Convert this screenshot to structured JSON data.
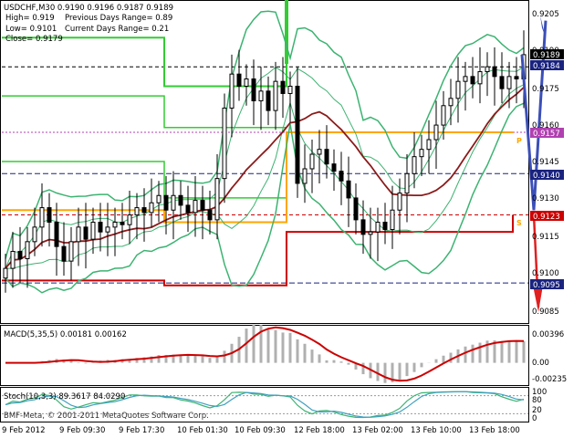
{
  "header": {
    "symbol_line": "USDCHF,M30  0.9190 0.9196 0.9187 0.9189",
    "high": "High= 0.919",
    "low": "Low= 0.9101",
    "close": "Close= 0.9179",
    "prev_range": "Previous Days Range= 0.89",
    "cur_range": "Current Days Range= 0.21"
  },
  "colors": {
    "candle": "#000000",
    "bollinger": "#3cb371",
    "ma_brown": "#8b1a1a",
    "ma_darkred": "#8b0000",
    "green_level": "#33cc33",
    "orange_level": "#ffa500",
    "red_level": "#cc0000",
    "arrow_blue": "#3b4fb8",
    "arrow_red": "#e02020",
    "pivot_magenta": "#b040b0",
    "macd_hist": "#b0b0b0",
    "macd_signal": "#cc0000",
    "stoch_main": "#3cb371",
    "stoch_signal": "#40a0c0"
  },
  "price_axis": {
    "labels": [
      "0.9205",
      "0.9190",
      "0.9175",
      "0.9160",
      "0.9145",
      "0.9130",
      "0.9115",
      "0.9100",
      "0.9085"
    ],
    "tags": [
      {
        "text": "0.9189",
        "bg": "#000000"
      },
      {
        "text": "0.9184",
        "bg": "#1a237e"
      },
      {
        "text": "0.9157",
        "bg": "#b040b0"
      },
      {
        "text": "0.9140",
        "bg": "#1a237e"
      },
      {
        "text": "0.9123",
        "bg": "#cc0000"
      },
      {
        "text": "0.9095",
        "bg": "#1a237e"
      }
    ]
  },
  "chart_labels": {
    "p": "P",
    "s": "S"
  },
  "macd": {
    "title": "MACD(5,35,5) 0.00181 0.00162",
    "axis": [
      "0.00396",
      "0.00",
      "-0.00235"
    ]
  },
  "stoch": {
    "title": "Stoch(10,3,3) 89.3617 84.0290",
    "axis": [
      "100",
      "80",
      "20",
      "0"
    ]
  },
  "time_axis": [
    "9 Feb 2012",
    "9 Feb 09:30",
    "9 Feb 17:30",
    "10 Feb 01:30",
    "10 Feb 09:30",
    "12 Feb 18:00",
    "13 Feb 02:00",
    "13 Feb 10:00",
    "13 Feb 18:00"
  ],
  "footer": "BMF-Meta, © 2001-2011 MetaQuotes Software Corp.",
  "chart_data": {
    "type": "candlestick",
    "close": [
      0.9101,
      0.9108,
      0.9105,
      0.9112,
      0.9118,
      0.9126,
      0.912,
      0.911,
      0.9104,
      0.9112,
      0.9118,
      0.9113,
      0.912,
      0.9116,
      0.9118,
      0.912,
      0.9119,
      0.9123,
      0.9126,
      0.9124,
      0.9128,
      0.9131,
      0.9125,
      0.9131,
      0.9127,
      0.9124,
      0.9129,
      0.9125,
      0.9121,
      0.9138,
      0.9167,
      0.9181,
      0.9176,
      0.9179,
      0.917,
      0.9174,
      0.9166,
      0.9178,
      0.9173,
      0.9176,
      0.9136,
      0.9142,
      0.9148,
      0.915,
      0.9144,
      0.9141,
      0.9137,
      0.913,
      0.9121,
      0.9115,
      0.9116,
      0.912,
      0.9117,
      0.9125,
      0.9132,
      0.914,
      0.9147,
      0.915,
      0.9154,
      0.916,
      0.9168,
      0.9171,
      0.9178,
      0.918,
      0.9177,
      0.9182,
      0.9184,
      0.918,
      0.9175,
      0.918,
      0.9179,
      0.9189
    ],
    "ylim": [
      0.908,
      0.921
    ],
    "macd_ylim": [
      -0.0025,
      0.0042
    ],
    "levels": {
      "pivot": 0.9157,
      "s1": 0.9123,
      "blue1": 0.914,
      "blue2": 0.9095,
      "top": 0.9184
    }
  }
}
